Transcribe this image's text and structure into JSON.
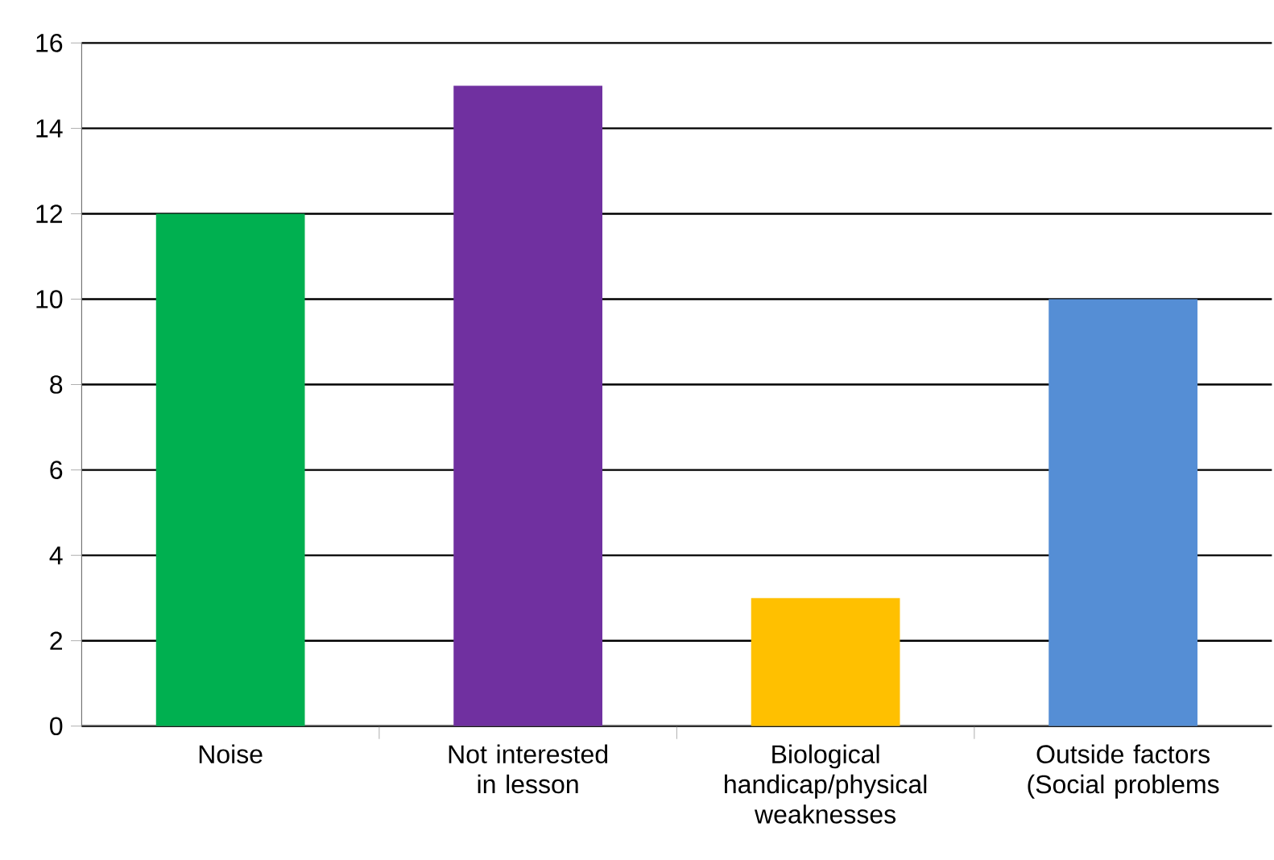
{
  "chart_data": {
    "type": "bar",
    "categories": [
      "Noise",
      "Not interested in lesson",
      "Biological handicap/physical weaknesses",
      "Outside factors (Social problems"
    ],
    "values": [
      12,
      15,
      3,
      10
    ],
    "colors": [
      "#00b050",
      "#7030a0",
      "#ffc000",
      "#558ed5"
    ],
    "ylim": [
      0,
      16
    ],
    "yticks": [
      0,
      2,
      4,
      6,
      8,
      10,
      12,
      14,
      16
    ],
    "grid": "y"
  }
}
